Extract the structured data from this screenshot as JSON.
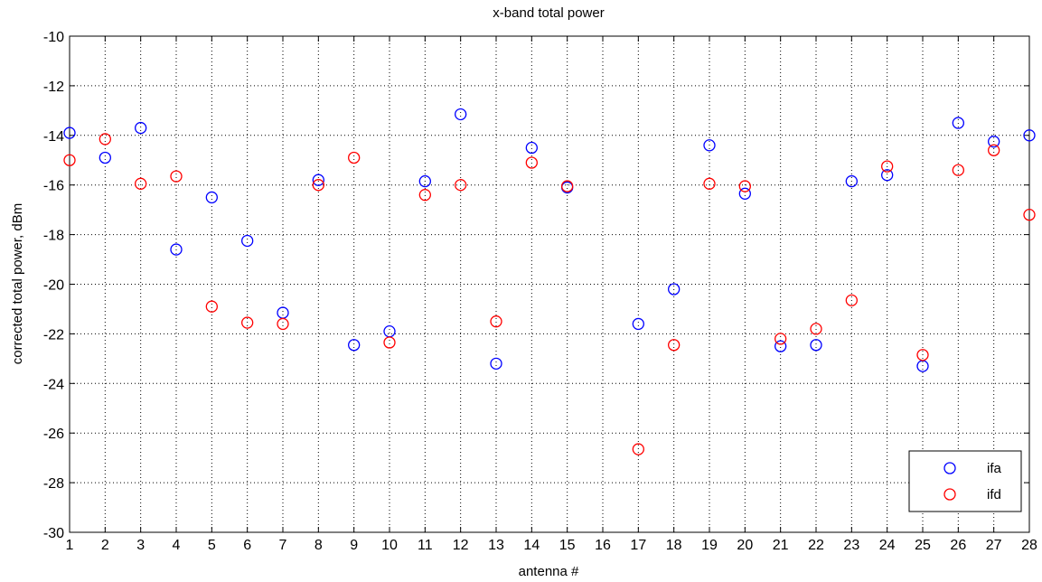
{
  "chart_data": {
    "type": "scatter",
    "title": "x-band total power",
    "xlabel": "antenna #",
    "ylabel": "corrected total power, dBm",
    "xlim": [
      1,
      28
    ],
    "ylim": [
      -30,
      -10
    ],
    "xticks": [
      1,
      2,
      3,
      4,
      5,
      6,
      7,
      8,
      9,
      10,
      11,
      12,
      13,
      14,
      15,
      16,
      17,
      18,
      19,
      20,
      21,
      22,
      23,
      24,
      25,
      26,
      27,
      28
    ],
    "yticks": [
      -30,
      -28,
      -26,
      -24,
      -22,
      -20,
      -18,
      -16,
      -14,
      -12,
      -10
    ],
    "grid": true,
    "legend_position": "bottom-right",
    "series": [
      {
        "name": "ifa",
        "color": "#0000ff",
        "marker": "circle",
        "points": [
          [
            1,
            -13.9
          ],
          [
            2,
            -14.9
          ],
          [
            3,
            -13.7
          ],
          [
            4,
            -18.6
          ],
          [
            5,
            -16.5
          ],
          [
            6,
            -18.25
          ],
          [
            7,
            -21.15
          ],
          [
            8,
            -15.8
          ],
          [
            9,
            -22.45
          ],
          [
            10,
            -21.9
          ],
          [
            11,
            -15.85
          ],
          [
            12,
            -13.15
          ],
          [
            13,
            -23.2
          ],
          [
            14,
            -14.5
          ],
          [
            15,
            -16.1
          ],
          [
            17,
            -21.6
          ],
          [
            18,
            -20.2
          ],
          [
            19,
            -14.4
          ],
          [
            20,
            -16.35
          ],
          [
            21,
            -22.5
          ],
          [
            22,
            -22.45
          ],
          [
            23,
            -15.85
          ],
          [
            24,
            -15.6
          ],
          [
            25,
            -23.3
          ],
          [
            26,
            -13.5
          ],
          [
            27,
            -14.25
          ],
          [
            28,
            -14.0
          ]
        ]
      },
      {
        "name": "ifd",
        "color": "#ff0000",
        "marker": "circle",
        "points": [
          [
            1,
            -15.0
          ],
          [
            2,
            -14.15
          ],
          [
            3,
            -15.95
          ],
          [
            4,
            -15.65
          ],
          [
            5,
            -20.9
          ],
          [
            6,
            -21.55
          ],
          [
            7,
            -21.6
          ],
          [
            8,
            -16.0
          ],
          [
            9,
            -14.9
          ],
          [
            10,
            -22.35
          ],
          [
            11,
            -16.4
          ],
          [
            12,
            -16.0
          ],
          [
            13,
            -21.5
          ],
          [
            14,
            -15.1
          ],
          [
            15,
            -16.05
          ],
          [
            17,
            -26.65
          ],
          [
            18,
            -22.45
          ],
          [
            19,
            -15.95
          ],
          [
            20,
            -16.05
          ],
          [
            21,
            -22.2
          ],
          [
            22,
            -21.8
          ],
          [
            23,
            -20.65
          ],
          [
            24,
            -15.25
          ],
          [
            25,
            -22.85
          ],
          [
            26,
            -15.4
          ],
          [
            27,
            -14.6
          ],
          [
            28,
            -17.2
          ]
        ]
      }
    ]
  }
}
